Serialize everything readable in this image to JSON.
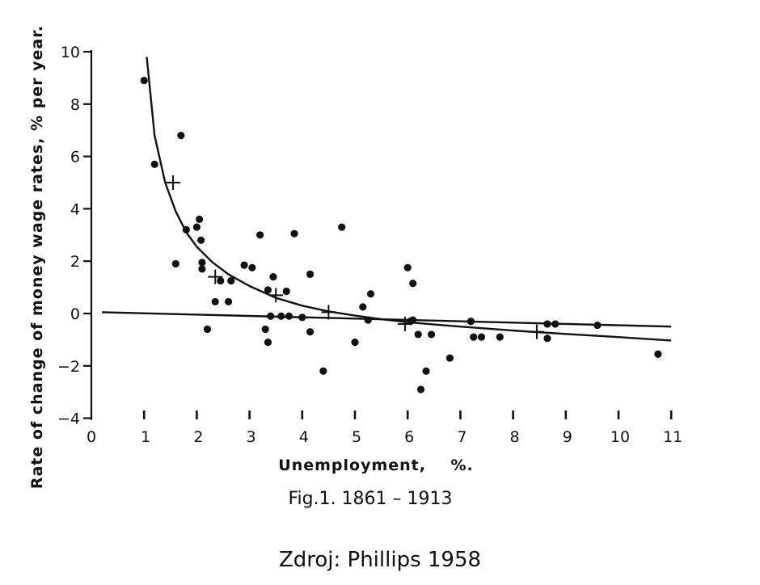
{
  "chart_data": {
    "type": "scatter",
    "title": "",
    "xlabel": "Unemployment,    %.",
    "ylabel": "Rate of change of money wage rates, % per year.",
    "xlim": [
      0,
      11
    ],
    "ylim": [
      -4,
      10
    ],
    "x_ticks": [
      0,
      1,
      2,
      3,
      4,
      5,
      6,
      7,
      8,
      9,
      10,
      11
    ],
    "y_ticks": [
      -4,
      -2,
      0,
      2,
      4,
      6,
      8,
      10
    ],
    "grid": false,
    "legend": "none",
    "series": [
      {
        "marker": "dot",
        "points": [
          [
            1.0,
            8.9
          ],
          [
            1.2,
            5.7
          ],
          [
            1.6,
            1.9
          ],
          [
            1.7,
            6.8
          ],
          [
            1.8,
            3.2
          ],
          [
            2.0,
            3.3
          ],
          [
            2.05,
            3.6
          ],
          [
            2.08,
            2.8
          ],
          [
            2.1,
            1.95
          ],
          [
            2.1,
            1.7
          ],
          [
            2.2,
            -0.6
          ],
          [
            2.35,
            0.45
          ],
          [
            2.45,
            1.25
          ],
          [
            2.6,
            0.45
          ],
          [
            2.65,
            1.25
          ],
          [
            2.9,
            1.85
          ],
          [
            3.05,
            1.75
          ],
          [
            3.2,
            3.0
          ],
          [
            3.3,
            -0.6
          ],
          [
            3.35,
            0.9
          ],
          [
            3.35,
            -1.1
          ],
          [
            3.4,
            -0.1
          ],
          [
            3.45,
            1.4
          ],
          [
            3.6,
            -0.1
          ],
          [
            3.7,
            0.85
          ],
          [
            3.75,
            -0.1
          ],
          [
            3.85,
            3.05
          ],
          [
            4.0,
            -0.15
          ],
          [
            4.15,
            1.5
          ],
          [
            4.15,
            -0.7
          ],
          [
            4.4,
            -2.2
          ],
          [
            4.75,
            3.3
          ],
          [
            5.0,
            -1.1
          ],
          [
            5.15,
            0.25
          ],
          [
            5.25,
            -0.25
          ],
          [
            5.3,
            0.75
          ],
          [
            6.0,
            1.75
          ],
          [
            6.05,
            -0.3
          ],
          [
            6.1,
            1.15
          ],
          [
            6.1,
            -0.25
          ],
          [
            6.2,
            -0.8
          ],
          [
            6.25,
            -2.9
          ],
          [
            6.35,
            -2.2
          ],
          [
            6.45,
            -0.8
          ],
          [
            6.8,
            -1.7
          ],
          [
            7.2,
            -0.3
          ],
          [
            7.25,
            -0.9
          ],
          [
            7.4,
            -0.9
          ],
          [
            7.75,
            -0.9
          ],
          [
            8.65,
            -0.95
          ],
          [
            8.65,
            -0.4
          ],
          [
            8.8,
            -0.4
          ],
          [
            9.6,
            -0.45
          ],
          [
            10.75,
            -1.55
          ]
        ]
      },
      {
        "marker": "cross",
        "points": [
          [
            1.55,
            5.0
          ],
          [
            2.35,
            1.4
          ],
          [
            3.5,
            0.7
          ],
          [
            4.5,
            0.05
          ],
          [
            5.95,
            -0.4
          ],
          [
            8.45,
            -0.7
          ]
        ]
      }
    ],
    "curves": [
      {
        "kind": "phillips-curve",
        "x": [
          1.05,
          1.2,
          1.4,
          1.6,
          1.8,
          2.0,
          2.3,
          2.6,
          3.0,
          3.5,
          4.0,
          4.5,
          5.0,
          5.5,
          6.0,
          6.5,
          7.0,
          8.0,
          9.0,
          10.0,
          11.0
        ],
        "y": [
          9.8,
          6.8,
          5.0,
          3.9,
          3.1,
          2.55,
          1.95,
          1.5,
          1.05,
          0.6,
          0.3,
          0.08,
          -0.08,
          -0.22,
          -0.33,
          -0.42,
          -0.5,
          -0.65,
          -0.78,
          -0.9,
          -1.03
        ]
      },
      {
        "kind": "regression-line",
        "x": [
          0.2,
          11.0
        ],
        "y": [
          0.05,
          -0.5
        ]
      }
    ]
  },
  "caption": {
    "figure": "Fig.1. 1861 – 1913",
    "source": "Zdroj: Phillips 1958"
  }
}
